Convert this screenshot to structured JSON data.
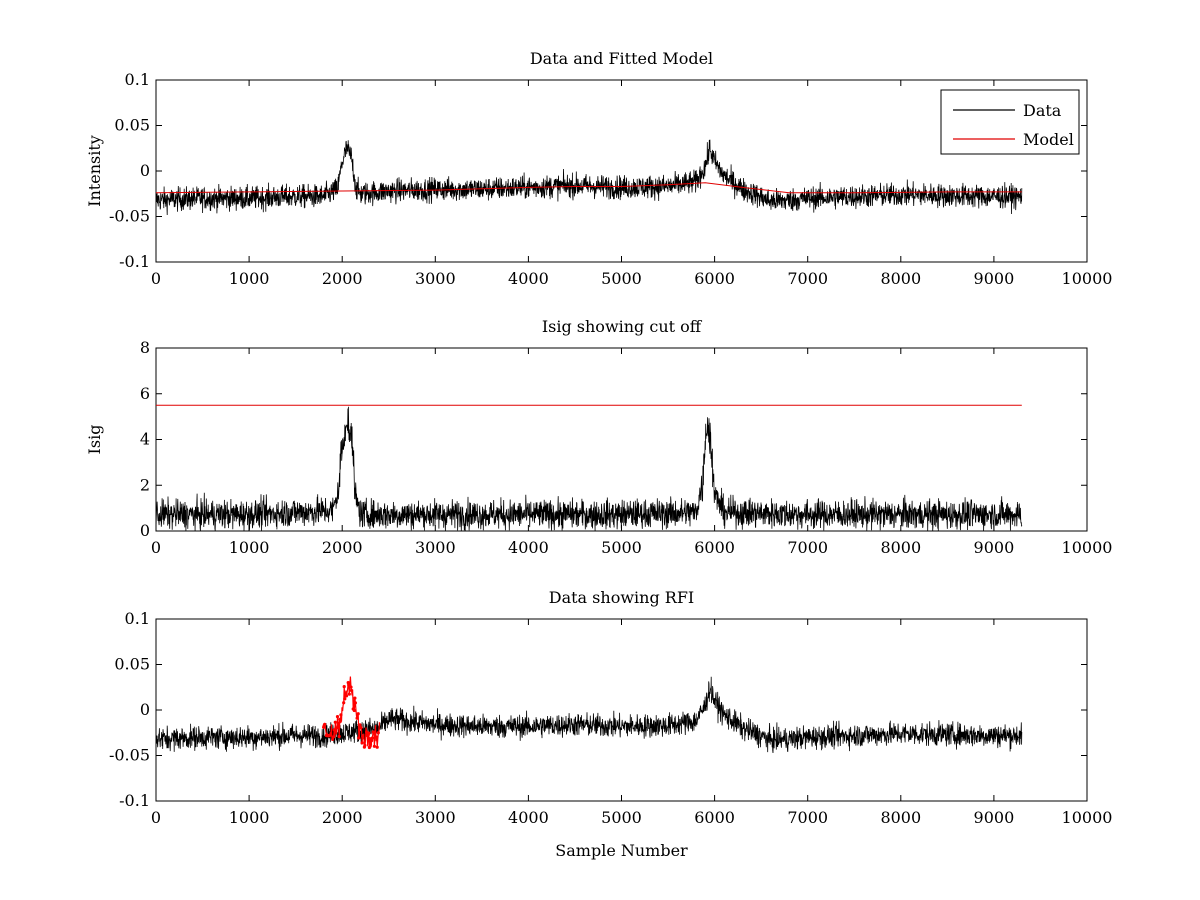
{
  "colors": {
    "data": "#000000",
    "model": "#e00000",
    "rfi": "#ff0000",
    "axes": "#000000",
    "background": "#ffffff"
  },
  "chart_data": [
    {
      "type": "line",
      "title": "Data and Fitted Model",
      "xlabel": "",
      "ylabel": "Intensity",
      "xlim": [
        0,
        10000
      ],
      "ylim": [
        -0.1,
        0.1
      ],
      "xticks": [
        0,
        1000,
        2000,
        3000,
        4000,
        5000,
        6000,
        7000,
        8000,
        9000,
        10000
      ],
      "xtick_labels": [
        "0",
        "1000",
        "2000",
        "3000",
        "4000",
        "5000",
        "6000",
        "7000",
        "8000",
        "9000",
        "10000"
      ],
      "yticks": [
        -0.1,
        -0.05,
        0,
        0.05,
        0.1
      ],
      "ytick_labels": [
        "-0.1",
        "-0.05",
        "0",
        "0.05",
        "0.1"
      ],
      "grid": false,
      "legend": {
        "position": "top-right",
        "entries": [
          "Data",
          "Model"
        ]
      },
      "series": [
        {
          "name": "Data",
          "color": "#000000",
          "noise_band": 0.022,
          "x": [
            0,
            500,
            1000,
            1500,
            1800,
            1950,
            2000,
            2050,
            2100,
            2150,
            2200,
            2500,
            3000,
            3500,
            4000,
            4500,
            5000,
            5500,
            5800,
            5900,
            5950,
            6000,
            6100,
            6300,
            6600,
            6800,
            7000,
            7500,
            8000,
            8500,
            9000,
            9300
          ],
          "y": [
            -0.032,
            -0.03,
            -0.03,
            -0.028,
            -0.028,
            -0.02,
            0.01,
            0.025,
            0.015,
            -0.02,
            -0.025,
            -0.022,
            -0.02,
            -0.02,
            -0.018,
            -0.016,
            -0.018,
            -0.017,
            -0.012,
            0.005,
            0.025,
            0.01,
            -0.005,
            -0.02,
            -0.033,
            -0.032,
            -0.03,
            -0.028,
            -0.026,
            -0.027,
            -0.028,
            -0.028
          ]
        },
        {
          "name": "Model",
          "color": "#e00000",
          "x": [
            0,
            1000,
            2000,
            3000,
            4000,
            4500,
            5000,
            5500,
            5900,
            6300,
            6800,
            7500,
            8500,
            9300
          ],
          "y": [
            -0.024,
            -0.023,
            -0.022,
            -0.021,
            -0.018,
            -0.017,
            -0.017,
            -0.015,
            -0.013,
            -0.018,
            -0.024,
            -0.024,
            -0.023,
            -0.023
          ]
        }
      ]
    },
    {
      "type": "line",
      "title": "Isig showing cut off",
      "xlabel": "",
      "ylabel": "Isig",
      "xlim": [
        0,
        10000
      ],
      "ylim": [
        0,
        8
      ],
      "xticks": [
        0,
        1000,
        2000,
        3000,
        4000,
        5000,
        6000,
        7000,
        8000,
        9000,
        10000
      ],
      "xtick_labels": [
        "0",
        "1000",
        "2000",
        "3000",
        "4000",
        "5000",
        "6000",
        "7000",
        "8000",
        "9000",
        "10000"
      ],
      "yticks": [
        0,
        2,
        4,
        6,
        8
      ],
      "ytick_labels": [
        "0",
        "2",
        "4",
        "6",
        "8"
      ],
      "grid": false,
      "series": [
        {
          "color": "#000000",
          "x": [
            0,
            1000,
            1900,
            1950,
            2000,
            2050,
            2100,
            2150,
            2200,
            3000,
            4000,
            5000,
            5800,
            5880,
            5920,
            5960,
            6000,
            6100,
            7000,
            8000,
            9000,
            9300
          ],
          "y": [
            0.8,
            0.8,
            1.0,
            1.8,
            3.2,
            4.2,
            3.6,
            1.5,
            0.8,
            0.8,
            0.8,
            0.8,
            0.9,
            2.5,
            4.0,
            3.0,
            1.8,
            0.9,
            0.8,
            0.8,
            0.8,
            0.8
          ]
        },
        {
          "color": "#e00000",
          "x": [
            0,
            9300
          ],
          "y": [
            5.5,
            5.5
          ]
        }
      ]
    },
    {
      "type": "line",
      "title": "Data showing RFI",
      "xlabel": "Sample Number",
      "ylabel": "",
      "xlim": [
        0,
        10000
      ],
      "ylim": [
        -0.1,
        0.1
      ],
      "xticks": [
        0,
        1000,
        2000,
        3000,
        4000,
        5000,
        6000,
        7000,
        8000,
        9000,
        10000
      ],
      "xtick_labels": [
        "0",
        "1000",
        "2000",
        "3000",
        "4000",
        "5000",
        "6000",
        "7000",
        "8000",
        "9000",
        "10000"
      ],
      "yticks": [
        -0.1,
        -0.05,
        0,
        0.05,
        0.1
      ],
      "ytick_labels": [
        "-0.1",
        "-0.05",
        "0",
        "0.05",
        "0.1"
      ],
      "grid": false,
      "series": [
        {
          "color": "#000000",
          "noise_band": 0.022,
          "x": [
            0,
            500,
            1000,
            1500,
            1800,
            2400,
            2500,
            3000,
            3500,
            4000,
            4500,
            5000,
            5500,
            5800,
            5900,
            5950,
            6000,
            6100,
            6300,
            6600,
            6800,
            7000,
            7500,
            8000,
            8500,
            9000,
            9300
          ],
          "y": [
            -0.032,
            -0.03,
            -0.03,
            -0.028,
            -0.028,
            -0.02,
            -0.01,
            -0.016,
            -0.018,
            -0.018,
            -0.016,
            -0.018,
            -0.017,
            -0.012,
            0.005,
            0.025,
            0.01,
            -0.005,
            -0.02,
            -0.033,
            -0.032,
            -0.03,
            -0.028,
            -0.026,
            -0.027,
            -0.028,
            -0.028
          ]
        },
        {
          "color": "#ff0000",
          "marker": "dot",
          "noise_band": 0.025,
          "x": [
            1800,
            1900,
            1980,
            2020,
            2060,
            2100,
            2140,
            2180,
            2220,
            2300,
            2400
          ],
          "y": [
            -0.028,
            -0.028,
            -0.01,
            0.01,
            0.025,
            0.02,
            0.0,
            -0.02,
            -0.028,
            -0.026,
            -0.025
          ]
        }
      ]
    }
  ]
}
